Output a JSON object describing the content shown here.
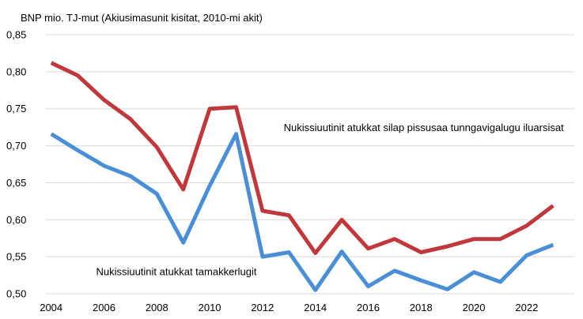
{
  "chart_data": {
    "type": "line",
    "title": "BNP mio. TJ-mut (Akiusimasunit kisitat, 2010-mi akit)",
    "xlabel": "",
    "ylabel": "",
    "x": [
      2004,
      2005,
      2006,
      2007,
      2008,
      2009,
      2010,
      2011,
      2012,
      2013,
      2014,
      2015,
      2016,
      2017,
      2018,
      2019,
      2020,
      2021,
      2022,
      2023
    ],
    "xticks": [
      2004,
      2006,
      2008,
      2010,
      2012,
      2014,
      2016,
      2018,
      2020,
      2022
    ],
    "xtick_labels": [
      "2004",
      "2006",
      "2008",
      "2010",
      "2012",
      "2014",
      "2016",
      "2018",
      "2020",
      "2022"
    ],
    "xlim": [
      2003.8,
      2023.8
    ],
    "yticks": [
      0.5,
      0.55,
      0.6,
      0.65,
      0.7,
      0.75,
      0.8,
      0.85
    ],
    "ytick_labels": [
      "0,50",
      "0,55",
      "0,60",
      "0,65",
      "0,70",
      "0,75",
      "0,80",
      "0,85"
    ],
    "ylim": [
      0.5,
      0.85
    ],
    "grid": "horizontal",
    "legend": "none",
    "series": [
      {
        "key": "red",
        "color": "#c0383b",
        "values": [
          0.812,
          0.795,
          0.762,
          0.736,
          0.698,
          0.641,
          0.75,
          0.752,
          0.612,
          0.606,
          0.555,
          0.6,
          0.561,
          0.574,
          0.556,
          0.564,
          0.574,
          0.574,
          0.592,
          0.619
        ]
      },
      {
        "key": "blue",
        "color": "#4a8fd6",
        "values": [
          0.716,
          0.694,
          0.673,
          0.659,
          0.635,
          0.569,
          0.646,
          0.716,
          0.55,
          0.556,
          0.505,
          0.557,
          0.51,
          0.531,
          0.518,
          0.506,
          0.529,
          0.516,
          0.552,
          0.566
        ]
      }
    ],
    "annotations": [
      {
        "text": "Nukissiuutinit atukkat silap pissusaa tunngavigalugu iluarsisat",
        "x": 2012.8,
        "y": 0.72
      },
      {
        "text": "Nukissiuutinit atukkat tamakkerlugit",
        "x": 2005.7,
        "y": 0.525
      }
    ]
  }
}
